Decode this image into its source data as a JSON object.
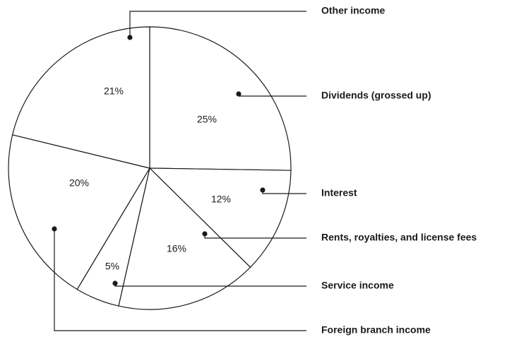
{
  "chart_data": {
    "type": "pie",
    "title": "",
    "start_angle_deg": 90,
    "direction": "clockwise",
    "slices": [
      {
        "label": "Dividends (grossed up)",
        "value": 25,
        "value_label": "25%"
      },
      {
        "label": "Interest",
        "value": 12,
        "value_label": "12%"
      },
      {
        "label": "Rents, royalties, and license fees",
        "value": 16,
        "value_label": "16%"
      },
      {
        "label": "Service income",
        "value": 5,
        "value_label": "5%"
      },
      {
        "label": "Foreign branch income",
        "value": 20,
        "value_label": "20%"
      },
      {
        "label": "Other income",
        "value": 21,
        "value_label": "21%"
      }
    ],
    "legend": "right, with leader lines",
    "colors": {
      "fill": "#ffffff",
      "stroke": "#1a1a1a"
    }
  }
}
